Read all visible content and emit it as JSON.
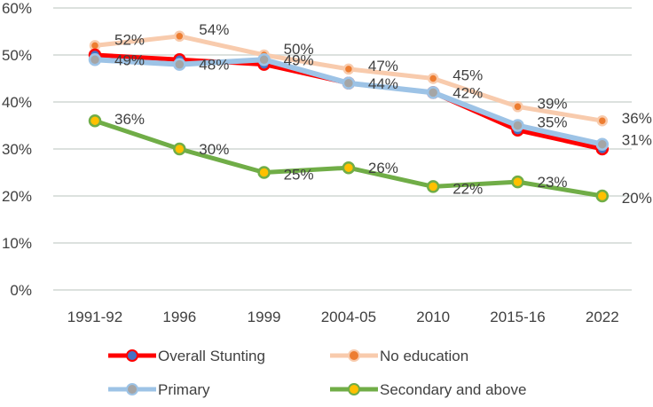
{
  "chart_data": {
    "type": "line",
    "title": "",
    "xlabel": "",
    "ylabel": "",
    "categories": [
      "1991-92",
      "1996",
      "1999",
      "2004-05",
      "2010",
      "2015-16",
      "2022"
    ],
    "ylim": [
      0,
      0.6
    ],
    "y_ticks": [
      0,
      0.1,
      0.2,
      0.3,
      0.4,
      0.5,
      0.6
    ],
    "y_tick_labels": [
      "0%",
      "10%",
      "20%",
      "30%",
      "40%",
      "50%",
      "60%"
    ],
    "grid": true,
    "legend_position": "bottom",
    "series": [
      {
        "name": "Overall Stunting",
        "line_color": "#ff0000",
        "marker_color": "#4472c4",
        "values": [
          0.5,
          0.49,
          0.48,
          0.44,
          0.42,
          0.34,
          0.3
        ],
        "data_labels": null
      },
      {
        "name": "No education",
        "line_color": "#f8cbad",
        "marker_color": "#ed7d31",
        "values": [
          0.52,
          0.54,
          0.5,
          0.47,
          0.45,
          0.39,
          0.36
        ],
        "data_labels": [
          "52%",
          "54%",
          "50%",
          "47%",
          "45%",
          "39%",
          "36%"
        ]
      },
      {
        "name": "Primary",
        "line_color": "#9dc3e6",
        "marker_color": "#a5a5a5",
        "values": [
          0.49,
          0.48,
          0.49,
          0.44,
          0.42,
          0.35,
          0.31
        ],
        "data_labels": [
          "49%",
          "48%",
          "49%",
          "44%",
          "42%",
          "35%",
          "31%"
        ]
      },
      {
        "name": "Secondary and above",
        "line_color": "#70ad47",
        "marker_color": "#ffc000",
        "values": [
          0.36,
          0.3,
          0.25,
          0.26,
          0.22,
          0.23,
          0.2
        ],
        "data_labels": [
          "36%",
          "30%",
          "25%",
          "26%",
          "22%",
          "23%",
          "20%"
        ]
      }
    ]
  }
}
